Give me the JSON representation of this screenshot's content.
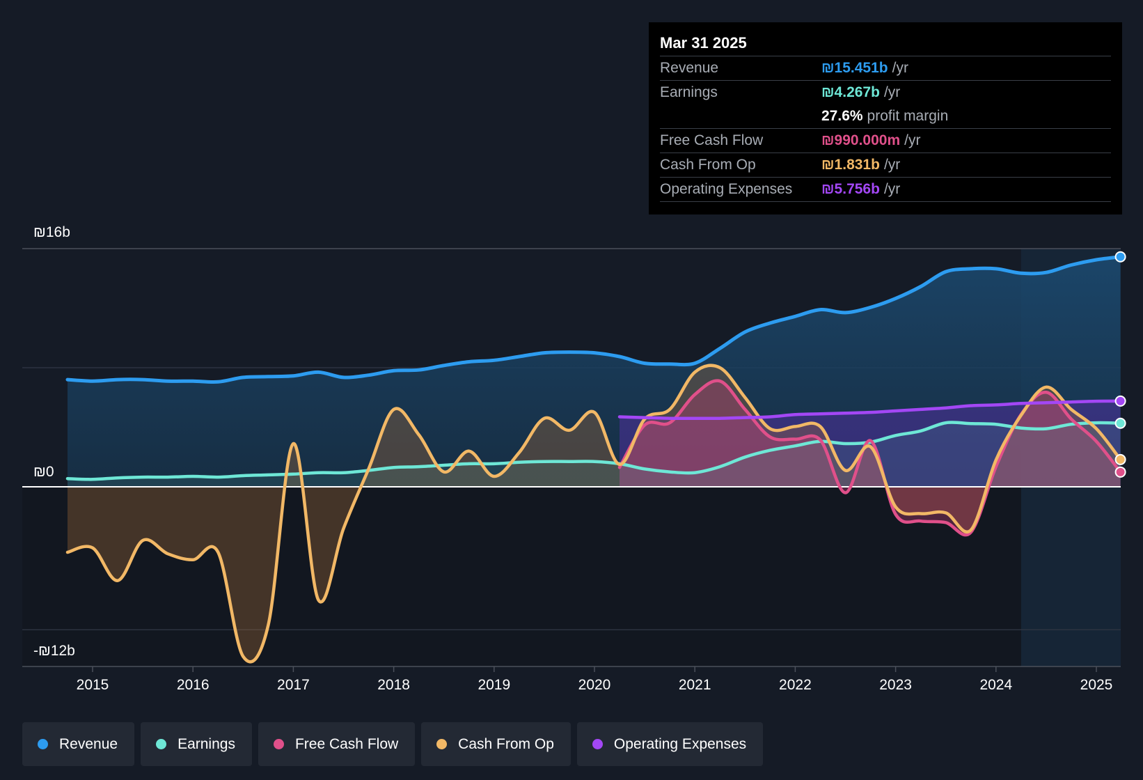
{
  "tooltip": {
    "date": "Mar 31 2025",
    "rows": [
      {
        "label": "Revenue",
        "value": "₪15.451b",
        "unit": "/yr",
        "color": "#2d9cf0"
      },
      {
        "label": "Earnings",
        "value": "₪4.267b",
        "unit": "/yr",
        "color": "#6ee7d6"
      },
      {
        "label": "",
        "value": "27.6%",
        "unit": "profit margin",
        "color": "#ffffff"
      },
      {
        "label": "Free Cash Flow",
        "value": "₪990.000m",
        "unit": "/yr",
        "color": "#e0508a"
      },
      {
        "label": "Cash From Op",
        "value": "₪1.831b",
        "unit": "/yr",
        "color": "#f2b866"
      },
      {
        "label": "Operating Expenses",
        "value": "₪5.756b",
        "unit": "/yr",
        "color": "#a347f5"
      }
    ]
  },
  "legend": [
    {
      "label": "Revenue",
      "color": "#2d9cf0"
    },
    {
      "label": "Earnings",
      "color": "#6ee7d6"
    },
    {
      "label": "Free Cash Flow",
      "color": "#e0508a"
    },
    {
      "label": "Cash From Op",
      "color": "#f2b866"
    },
    {
      "label": "Operating Expenses",
      "color": "#a347f5"
    }
  ],
  "chart_data": {
    "type": "area",
    "title": "",
    "currency": "ILS",
    "y_axis_labels": [
      "₪16b",
      "₪0",
      "-₪12b"
    ],
    "ylim": [
      -12,
      16
    ],
    "x_ticks": [
      "2015",
      "2016",
      "2017",
      "2018",
      "2019",
      "2020",
      "2021",
      "2022",
      "2023",
      "2024",
      "2025"
    ],
    "x_tick_values": [
      2015,
      2016,
      2017,
      2018,
      2019,
      2020,
      2021,
      2022,
      2023,
      2024,
      2025
    ],
    "xlim": [
      2014.27,
      2025.24
    ],
    "forecast_shade_start": 2024.25,
    "series": [
      {
        "name": "Revenue",
        "color": "#2d9cf0",
        "unit": "₪b",
        "x": [
          2014.75,
          2015.0,
          2015.25,
          2015.5,
          2015.75,
          2016.0,
          2016.25,
          2016.5,
          2016.75,
          2017.0,
          2017.25,
          2017.5,
          2017.75,
          2018.0,
          2018.25,
          2018.5,
          2018.75,
          2019.0,
          2019.25,
          2019.5,
          2019.75,
          2020.0,
          2020.25,
          2020.5,
          2020.75,
          2021.0,
          2021.25,
          2021.5,
          2021.75,
          2022.0,
          2022.25,
          2022.5,
          2022.75,
          2023.0,
          2023.25,
          2023.5,
          2023.75,
          2024.0,
          2024.25,
          2024.5,
          2024.75,
          2025.0,
          2025.24
        ],
        "values": [
          7.2,
          7.1,
          7.2,
          7.2,
          7.1,
          7.1,
          7.05,
          7.35,
          7.4,
          7.45,
          7.7,
          7.35,
          7.5,
          7.8,
          7.85,
          8.15,
          8.4,
          8.5,
          8.75,
          9.0,
          9.05,
          9.0,
          8.75,
          8.3,
          8.25,
          8.3,
          9.3,
          10.4,
          11.0,
          11.45,
          11.9,
          11.7,
          12.05,
          12.65,
          13.45,
          14.45,
          14.65,
          14.65,
          14.35,
          14.4,
          14.9,
          15.25,
          15.45
        ]
      },
      {
        "name": "Earnings",
        "color": "#6ee7d6",
        "unit": "₪b",
        "x": [
          2014.75,
          2015.0,
          2015.25,
          2015.5,
          2015.75,
          2016.0,
          2016.25,
          2016.5,
          2016.75,
          2017.0,
          2017.25,
          2017.5,
          2017.75,
          2018.0,
          2018.25,
          2018.5,
          2018.75,
          2019.0,
          2019.25,
          2019.5,
          2019.75,
          2020.0,
          2020.25,
          2020.5,
          2020.75,
          2021.0,
          2021.25,
          2021.5,
          2021.75,
          2022.0,
          2022.25,
          2022.5,
          2022.75,
          2023.0,
          2023.25,
          2023.5,
          2023.75,
          2024.0,
          2024.25,
          2024.5,
          2024.75,
          2025.0,
          2025.24
        ],
        "values": [
          0.55,
          0.5,
          0.6,
          0.65,
          0.65,
          0.7,
          0.65,
          0.75,
          0.8,
          0.85,
          0.95,
          0.95,
          1.1,
          1.3,
          1.35,
          1.45,
          1.55,
          1.55,
          1.65,
          1.7,
          1.7,
          1.7,
          1.55,
          1.2,
          1.0,
          0.95,
          1.35,
          2.0,
          2.45,
          2.75,
          3.05,
          2.9,
          3.0,
          3.45,
          3.75,
          4.3,
          4.25,
          4.2,
          3.95,
          3.9,
          4.2,
          4.3,
          4.27
        ]
      },
      {
        "name": "Free Cash Flow",
        "color": "#e0508a",
        "unit": "₪b",
        "x": [
          2020.25,
          2020.5,
          2020.75,
          2021.0,
          2021.25,
          2021.5,
          2021.75,
          2022.0,
          2022.25,
          2022.5,
          2022.75,
          2023.0,
          2023.25,
          2023.5,
          2023.75,
          2024.0,
          2024.25,
          2024.5,
          2024.75,
          2025.0,
          2025.24
        ],
        "values": [
          1.3,
          4.15,
          4.3,
          6.2,
          7.1,
          5.2,
          3.35,
          3.2,
          3.15,
          -0.4,
          3.1,
          -1.85,
          -2.3,
          -2.4,
          -3.05,
          1.35,
          4.85,
          6.35,
          4.55,
          3.05,
          0.99
        ]
      },
      {
        "name": "Cash From Op",
        "color": "#f2b866",
        "unit": "₪b",
        "x": [
          2014.75,
          2015.0,
          2015.25,
          2015.5,
          2015.75,
          2016.0,
          2016.25,
          2016.5,
          2016.75,
          2017.0,
          2017.25,
          2017.5,
          2017.75,
          2018.0,
          2018.25,
          2018.5,
          2018.75,
          2019.0,
          2019.25,
          2019.5,
          2019.75,
          2020.0,
          2020.25,
          2020.5,
          2020.75,
          2021.0,
          2021.25,
          2021.5,
          2021.75,
          2022.0,
          2022.25,
          2022.5,
          2022.75,
          2023.0,
          2023.25,
          2023.5,
          2023.75,
          2024.0,
          2024.25,
          2024.5,
          2024.75,
          2025.0,
          2025.24
        ],
        "values": [
          -4.4,
          -4.1,
          -6.3,
          -3.6,
          -4.5,
          -4.9,
          -4.4,
          -11.4,
          -9.3,
          2.9,
          -7.6,
          -2.8,
          1.2,
          5.2,
          3.5,
          1.0,
          2.4,
          0.7,
          2.3,
          4.6,
          3.8,
          5.0,
          1.5,
          4.55,
          5.2,
          7.7,
          8.0,
          6.0,
          3.9,
          4.05,
          4.05,
          1.1,
          2.7,
          -1.35,
          -1.8,
          -1.75,
          -2.9,
          1.8,
          4.8,
          6.7,
          5.2,
          3.9,
          1.83
        ]
      },
      {
        "name": "Operating Expenses",
        "color": "#a347f5",
        "unit": "₪b",
        "x": [
          2020.25,
          2020.5,
          2020.75,
          2021.0,
          2021.25,
          2021.5,
          2021.75,
          2022.0,
          2022.25,
          2022.5,
          2022.75,
          2023.0,
          2023.25,
          2023.5,
          2023.75,
          2024.0,
          2024.25,
          2024.5,
          2024.75,
          2025.0,
          2025.24
        ],
        "values": [
          4.7,
          4.65,
          4.6,
          4.6,
          4.6,
          4.65,
          4.7,
          4.85,
          4.9,
          4.95,
          5.0,
          5.1,
          5.2,
          5.3,
          5.45,
          5.5,
          5.6,
          5.65,
          5.7,
          5.75,
          5.76
        ]
      }
    ]
  }
}
